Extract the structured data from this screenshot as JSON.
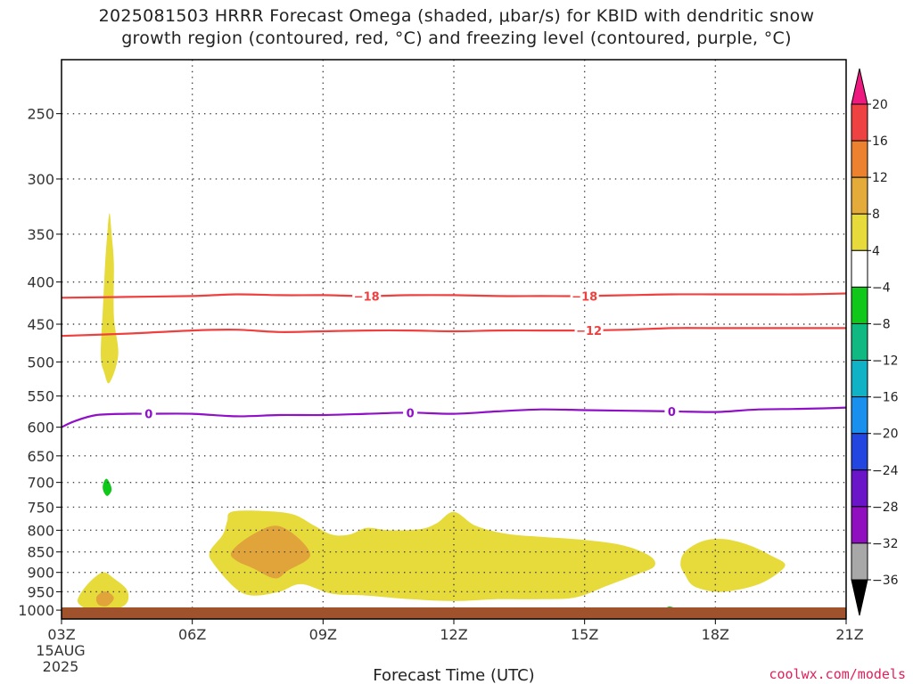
{
  "chart_data": {
    "type": "contour",
    "title_line1": "2025081503 HRRR Forecast Omega (shaded, μbar/s) for KBID with dendritic snow",
    "title_line2": "growth region (contoured, red, °C) and freezing level (contoured, purple, °C)",
    "xlabel": "Forecast Time (UTC)",
    "x_ticks": [
      {
        "hour": 3,
        "label": "03Z"
      },
      {
        "hour": 6,
        "label": "06Z"
      },
      {
        "hour": 9,
        "label": "09Z"
      },
      {
        "hour": 12,
        "label": "12Z"
      },
      {
        "hour": 15,
        "label": "15Z"
      },
      {
        "hour": 18,
        "label": "18Z"
      },
      {
        "hour": 21,
        "label": "21Z"
      }
    ],
    "x_date_label": [
      "15AUG",
      "2025"
    ],
    "xlim": [
      3,
      21
    ],
    "y_scale": "log",
    "ylim": [
      1025,
      215
    ],
    "y_ticks": [
      250,
      300,
      350,
      400,
      450,
      500,
      550,
      600,
      650,
      700,
      750,
      800,
      850,
      900,
      950,
      1000
    ],
    "grid": true,
    "omega_fills": [
      {
        "level": "4-8",
        "color": "#e6db3a",
        "points": [
          [
            3.9,
            490
          ],
          [
            3.95,
            430
          ],
          [
            4.0,
            380
          ],
          [
            4.05,
            350
          ],
          [
            4.1,
            330
          ],
          [
            4.15,
            350
          ],
          [
            4.2,
            380
          ],
          [
            4.2,
            440
          ],
          [
            4.3,
            490
          ],
          [
            4.1,
            530
          ],
          [
            3.98,
            515
          ]
        ]
      },
      {
        "level": "4-8",
        "color": "#e6db3a",
        "points": [
          [
            3.4,
            962
          ],
          [
            3.6,
            930
          ],
          [
            3.85,
            905
          ],
          [
            4.0,
            900
          ],
          [
            4.2,
            915
          ],
          [
            4.5,
            945
          ],
          [
            4.5,
            980
          ],
          [
            4.2,
            1000
          ],
          [
            3.8,
            1003
          ],
          [
            3.55,
            995
          ],
          [
            3.38,
            980
          ]
        ]
      },
      {
        "level": "8-12",
        "color": "#e0a43a",
        "points": [
          [
            3.8,
            965
          ],
          [
            3.95,
            950
          ],
          [
            4.1,
            953
          ],
          [
            4.2,
            968
          ],
          [
            4.05,
            988
          ],
          [
            3.85,
            985
          ]
        ]
      },
      {
        "level": "4-8",
        "color": "#e6db3a",
        "points": [
          [
            6.9,
            760
          ],
          [
            7.6,
            758
          ],
          [
            8.3,
            765
          ],
          [
            8.8,
            790
          ],
          [
            9.2,
            810
          ],
          [
            9.6,
            810
          ],
          [
            10.0,
            795
          ],
          [
            10.5,
            800
          ],
          [
            11.2,
            798
          ],
          [
            11.6,
            785
          ],
          [
            12.0,
            760
          ],
          [
            12.5,
            790
          ],
          [
            13.2,
            808
          ],
          [
            14.0,
            815
          ],
          [
            15.0,
            822
          ],
          [
            15.9,
            835
          ],
          [
            16.5,
            860
          ],
          [
            16.6,
            885
          ],
          [
            16.2,
            905
          ],
          [
            15.5,
            935
          ],
          [
            14.8,
            965
          ],
          [
            14.0,
            970
          ],
          [
            13.0,
            970
          ],
          [
            12.0,
            975
          ],
          [
            11.0,
            970
          ],
          [
            10.0,
            960
          ],
          [
            9.2,
            955
          ],
          [
            8.5,
            930
          ],
          [
            8.0,
            950
          ],
          [
            7.4,
            960
          ],
          [
            7.0,
            942
          ],
          [
            6.5,
            880
          ],
          [
            6.4,
            850
          ],
          [
            6.7,
            810
          ],
          [
            6.8,
            780
          ]
        ]
      },
      {
        "level": "8-12",
        "color": "#e0a43a",
        "points": [
          [
            6.9,
            850
          ],
          [
            7.3,
            815
          ],
          [
            7.9,
            790
          ],
          [
            8.4,
            815
          ],
          [
            8.7,
            860
          ],
          [
            8.2,
            895
          ],
          [
            7.9,
            915
          ],
          [
            7.4,
            890
          ],
          [
            7.0,
            870
          ]
        ]
      },
      {
        "level": "4-8",
        "color": "#e6db3a",
        "points": [
          [
            17.3,
            850
          ],
          [
            17.7,
            825
          ],
          [
            18.2,
            820
          ],
          [
            18.8,
            835
          ],
          [
            19.3,
            860
          ],
          [
            19.6,
            880
          ],
          [
            19.4,
            905
          ],
          [
            19.0,
            930
          ],
          [
            18.5,
            945
          ],
          [
            18.0,
            950
          ],
          [
            17.5,
            935
          ],
          [
            17.3,
            905
          ],
          [
            17.2,
            880
          ]
        ]
      },
      {
        "level": "-8--4",
        "color": "#10c81a",
        "points": [
          [
            3.95,
            705
          ],
          [
            4.02,
            693
          ],
          [
            4.1,
            700
          ],
          [
            4.15,
            715
          ],
          [
            4.05,
            727
          ],
          [
            3.96,
            717
          ]
        ]
      },
      {
        "level": "-8--4",
        "color": "#10c81a",
        "points": [
          [
            16.4,
            1020
          ],
          [
            16.6,
            1010
          ],
          [
            16.8,
            1000
          ],
          [
            16.95,
            990
          ],
          [
            17.2,
            1000
          ],
          [
            17.6,
            1015
          ],
          [
            17.8,
            1022
          ]
        ]
      },
      {
        "level": "-8--4",
        "color": "#10c81a",
        "points": [
          [
            19.0,
            1020
          ],
          [
            19.5,
            1010
          ],
          [
            20.0,
            1003
          ],
          [
            20.5,
            993
          ],
          [
            21.0,
            998
          ],
          [
            21.0,
            1022
          ]
        ]
      }
    ],
    "temperature_contours": [
      {
        "value": -18,
        "color": "#ef4040",
        "label": "−18",
        "label_hours": [
          10.0,
          15.0
        ],
        "points": [
          [
            3,
            418
          ],
          [
            4.5,
            417
          ],
          [
            6,
            416
          ],
          [
            7,
            414
          ],
          [
            8,
            415
          ],
          [
            9,
            415
          ],
          [
            10,
            416
          ],
          [
            11,
            415
          ],
          [
            12,
            415
          ],
          [
            13,
            416
          ],
          [
            14,
            416
          ],
          [
            15,
            416
          ],
          [
            16,
            415
          ],
          [
            17,
            414
          ],
          [
            18,
            414
          ],
          [
            19,
            414
          ],
          [
            20,
            414
          ],
          [
            21,
            413
          ]
        ]
      },
      {
        "value": -12,
        "color": "#ef4040",
        "label": "−12",
        "label_hours": [
          15.1
        ],
        "points": [
          [
            3,
            465
          ],
          [
            4.5,
            462
          ],
          [
            6,
            458
          ],
          [
            7,
            457
          ],
          [
            8,
            460
          ],
          [
            9,
            459
          ],
          [
            10,
            458
          ],
          [
            11,
            458
          ],
          [
            12,
            459
          ],
          [
            13,
            458
          ],
          [
            14,
            458
          ],
          [
            15,
            458
          ],
          [
            16,
            457
          ],
          [
            17,
            455
          ],
          [
            18,
            455
          ],
          [
            19,
            455
          ],
          [
            20,
            455
          ],
          [
            21,
            455
          ]
        ]
      },
      {
        "value": 0,
        "color": "#9010c8",
        "label": "0",
        "label_hours": [
          5.0,
          11.0,
          17.0
        ],
        "points": [
          [
            3,
            600
          ],
          [
            3.3,
            590
          ],
          [
            3.8,
            580
          ],
          [
            4.5,
            578
          ],
          [
            5,
            578
          ],
          [
            6,
            578
          ],
          [
            7,
            582
          ],
          [
            8,
            580
          ],
          [
            9,
            580
          ],
          [
            10,
            578
          ],
          [
            11,
            576
          ],
          [
            12,
            578
          ],
          [
            13,
            574
          ],
          [
            14,
            571
          ],
          [
            15,
            572
          ],
          [
            16,
            573
          ],
          [
            17,
            574
          ],
          [
            18,
            575
          ],
          [
            19,
            571
          ],
          [
            20,
            570
          ],
          [
            21,
            568
          ]
        ]
      }
    ],
    "colorbar": {
      "levels": [
        "20",
        "16",
        "12",
        "8",
        "4",
        "−4",
        "−8",
        "−12",
        "−16",
        "−20",
        "−24",
        "−28",
        "−32",
        "−36"
      ],
      "colors": [
        "#ee1a80",
        "#ee4242",
        "#ec8230",
        "#e4aa3a",
        "#e6db3a",
        "#ffffff",
        "#10c81a",
        "#10b882",
        "#10b2c6",
        "#1a90ee",
        "#2446e0",
        "#6a16c8",
        "#9010c0",
        "#a8a8a8",
        "#000000"
      ]
    },
    "terrain_color": "#a0522d",
    "contour_label_color_red": "#ef4040",
    "contour_label_color_purple": "#9010c8"
  },
  "credit": "coolwx.com/models"
}
